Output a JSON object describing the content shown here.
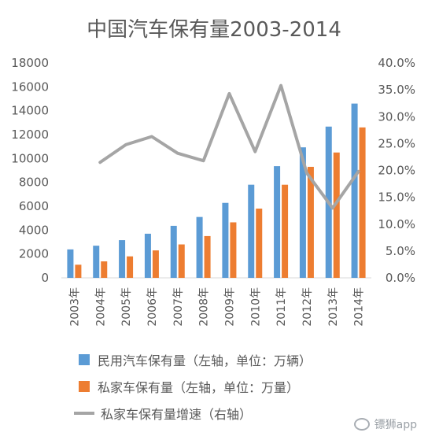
{
  "chart_data": {
    "type": "bar",
    "title": "中国汽车保有量2003-2014",
    "categories": [
      "2003年",
      "2004年",
      "2005年",
      "2006年",
      "2007年",
      "2008年",
      "2009年",
      "2010年",
      "2011年",
      "2012年",
      "2013年",
      "2014年"
    ],
    "left_axis": {
      "ylim": [
        0,
        18000
      ],
      "ticks": [
        "0",
        "2000",
        "4000",
        "6000",
        "8000",
        "10000",
        "12000",
        "14000",
        "16000",
        "18000"
      ]
    },
    "right_axis": {
      "ylim": [
        0,
        40
      ],
      "ticks": [
        "0.0%",
        "5.0%",
        "10.0%",
        "15.0%",
        "20.0%",
        "25.0%",
        "30.0%",
        "35.0%",
        "40.0%"
      ]
    },
    "series": [
      {
        "name": "民用汽车保有量（左轴，单位：万辆）",
        "kind": "bar",
        "axis": "left",
        "color": "#5b9bd5",
        "values": [
          2383,
          2694,
          3160,
          3697,
          4358,
          5100,
          6281,
          7802,
          9356,
          10933,
          12670,
          14598
        ]
      },
      {
        "name": "私家车保有量（左轴，单位：万量）",
        "kind": "bar",
        "axis": "left",
        "color": "#ed7d31",
        "values": [
          1100,
          1380,
          1800,
          2300,
          2800,
          3500,
          4650,
          5800,
          7800,
          9300,
          10500,
          12600
        ]
      },
      {
        "name": "私家车保有量增速（右轴）",
        "kind": "line",
        "axis": "right",
        "color": "#a5a5a5",
        "values": [
          null,
          21.5,
          24.8,
          26.3,
          23.2,
          21.8,
          34.3,
          23.5,
          35.8,
          19.5,
          13.0,
          19.8
        ]
      }
    ],
    "grid": false,
    "legend_position": "bottom"
  },
  "watermark": {
    "text": "镖狮app",
    "icon": "wechat-icon"
  }
}
